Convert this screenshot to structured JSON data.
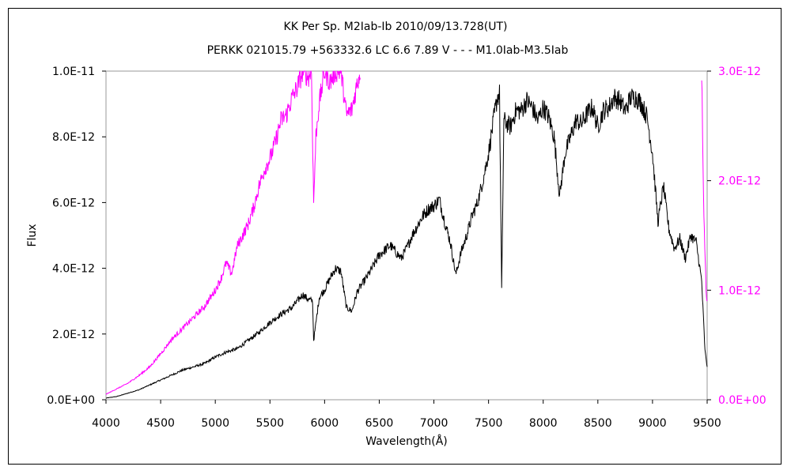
{
  "chart_data": {
    "type": "line",
    "title": "KK Per    Sp. M2Iab-Ib    2010/09/13.728(UT)",
    "subtitle": "PERKK 021015.79 +563332.6 LC 6.6 7.89 V - - - M1.0Iab-M3.5Iab",
    "xlabel": "Wavelength(Å)",
    "ylabel": "Flux",
    "xlim": [
      4000,
      9500
    ],
    "ylim_left": [
      0,
      1e-11
    ],
    "ylim_right": [
      0,
      3e-12
    ],
    "x_ticks": [
      "4000",
      "4500",
      "5000",
      "5500",
      "6000",
      "6500",
      "7000",
      "7500",
      "8000",
      "8500",
      "9000",
      "9500"
    ],
    "y_ticks_left": [
      "0.0E+00",
      "2.0E-12",
      "4.0E-12",
      "6.0E-12",
      "8.0E-12",
      "1.0E-11"
    ],
    "y_ticks_right": [
      "0.0E+00",
      "1.0E-12",
      "2.0E-12",
      "3.0E-12"
    ],
    "grid": false,
    "series": [
      {
        "axis": "left",
        "color": "#000000",
        "x": [
          4000,
          4100,
          4200,
          4300,
          4400,
          4500,
          4600,
          4700,
          4800,
          4900,
          5000,
          5100,
          5200,
          5300,
          5400,
          5500,
          5600,
          5700,
          5800,
          5850,
          5890,
          5900,
          5950,
          6000,
          6050,
          6100,
          6150,
          6200,
          6250,
          6300,
          6400,
          6500,
          6600,
          6700,
          6750,
          6800,
          6850,
          6900,
          6950,
          7000,
          7050,
          7100,
          7150,
          7200,
          7250,
          7300,
          7350,
          7400,
          7450,
          7500,
          7550,
          7580,
          7600,
          7620,
          7640,
          7700,
          7750,
          7800,
          7850,
          7900,
          7950,
          8000,
          8050,
          8100,
          8150,
          8200,
          8250,
          8300,
          8350,
          8400,
          8450,
          8500,
          8550,
          8600,
          8650,
          8700,
          8750,
          8800,
          8850,
          8900,
          8950,
          9000,
          9050,
          9100,
          9150,
          9200,
          9250,
          9300,
          9350,
          9400,
          9450,
          9480,
          9500
        ],
        "y": [
          5e-14,
          1e-13,
          2e-13,
          3e-13,
          4.5e-13,
          6e-13,
          7.5e-13,
          9e-13,
          1e-12,
          1.1e-12,
          1.3e-12,
          1.45e-12,
          1.55e-12,
          1.8e-12,
          2.05e-12,
          2.35e-12,
          2.6e-12,
          2.8e-12,
          3.2e-12,
          3.05e-12,
          3e-12,
          1.8e-12,
          3.1e-12,
          3.35e-12,
          3.7e-12,
          4e-12,
          3.9e-12,
          2.8e-12,
          2.7e-12,
          3.3e-12,
          3.8e-12,
          4.4e-12,
          4.7e-12,
          4.3e-12,
          4.6e-12,
          5e-12,
          5.3e-12,
          5.6e-12,
          5.8e-12,
          5.9e-12,
          6.1e-12,
          5.4e-12,
          4.8e-12,
          3.8e-12,
          4.5e-12,
          5e-12,
          5.6e-12,
          6e-12,
          6.7e-12,
          7.5e-12,
          8.6e-12,
          9.2e-12,
          9.3e-12,
          3.3e-12,
          8.5e-12,
          8.3e-12,
          8.8e-12,
          8.8e-12,
          9.1e-12,
          8.9e-12,
          8.5e-12,
          8.9e-12,
          8.6e-12,
          8e-12,
          6.2e-12,
          7.5e-12,
          8e-12,
          8.5e-12,
          8.4e-12,
          8.7e-12,
          8.9e-12,
          8.3e-12,
          8.8e-12,
          8.9e-12,
          9.2e-12,
          9.1e-12,
          8.8e-12,
          9.2e-12,
          9.2e-12,
          9e-12,
          8.6e-12,
          7.5e-12,
          5.4e-12,
          6.5e-12,
          5.2e-12,
          4.6e-12,
          4.9e-12,
          4.3e-12,
          5e-12,
          4.8e-12,
          3.6e-12,
          1.5e-12,
          1e-12
        ]
      },
      {
        "axis": "right",
        "color": "#ff00ff",
        "x": [
          4000,
          4100,
          4200,
          4300,
          4400,
          4500,
          4600,
          4700,
          4800,
          4900,
          5000,
          5050,
          5100,
          5150,
          5200,
          5250,
          5300,
          5350,
          5400,
          5450,
          5500,
          5550,
          5600,
          5650,
          5700,
          5750,
          5800,
          5850,
          5880,
          5900,
          5920,
          5950,
          6000,
          6050,
          6100,
          6150,
          6200,
          6250,
          6300,
          6330,
          9450,
          9470,
          9490,
          9500
        ],
        "y": [
          5e-14,
          1e-13,
          1.5e-13,
          2.2e-13,
          3e-13,
          4.2e-13,
          5.5e-13,
          6.5e-13,
          7.5e-13,
          8.5e-13,
          1e-12,
          1.1e-12,
          1.25e-12,
          1.15e-12,
          1.4e-12,
          1.5e-12,
          1.6e-12,
          1.75e-12,
          1.95e-12,
          2.1e-12,
          2.2e-12,
          2.35e-12,
          2.55e-12,
          2.6e-12,
          2.75e-12,
          2.85e-12,
          3e-12,
          2.95e-12,
          3e-12,
          1.8e-12,
          2.4e-12,
          2.7e-12,
          3e-12,
          2.9e-12,
          3e-12,
          3e-12,
          2.6e-12,
          2.65e-12,
          2.9e-12,
          3e-12,
          3e-12,
          1.7e-12,
          1e-12,
          9e-13
        ]
      }
    ]
  },
  "colors": {
    "left_axis": "#000000",
    "right_axis": "#ff00ff",
    "frame": "#000000"
  }
}
